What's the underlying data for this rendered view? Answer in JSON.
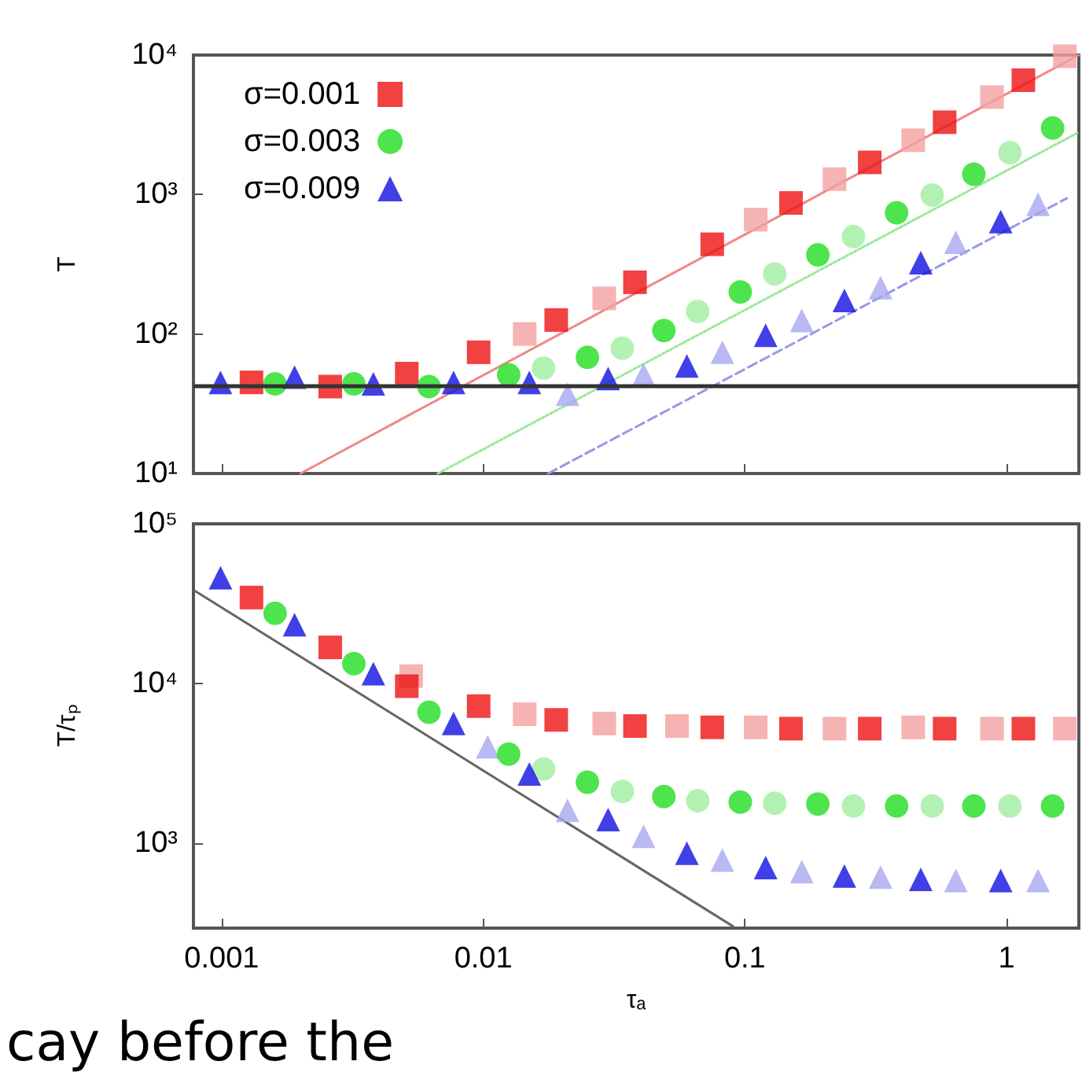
{
  "chart_data": [
    {
      "type": "scatter",
      "ylabel": "T",
      "log": "xy",
      "grid": false,
      "legend": "top left",
      "tick_labels": "y",
      "xlim": [
        0.00078,
        1.89
      ],
      "xticks": [
        0.001,
        0.01,
        0.1,
        1
      ],
      "ylim": [
        10,
        10000
      ],
      "yticks": [
        {
          "value": 10,
          "label": "10¹"
        },
        {
          "value": 100,
          "label": "10²"
        },
        {
          "value": 1000,
          "label": "10³"
        },
        {
          "value": 10000,
          "label": "10⁴"
        }
      ],
      "ref_lines": [
        {
          "axis": "y",
          "value": 43,
          "color": "#333333"
        }
      ],
      "series": [
        {
          "type": "line",
          "color": "#f08888",
          "marker": "none",
          "line_style": "solid",
          "x": [
            0.002,
            1.89
          ],
          "values": [
            10,
            10000
          ]
        },
        {
          "type": "line",
          "color": "#98e898",
          "marker": "none",
          "line_style": "dotted",
          "x": [
            0.0067,
            1.89
          ],
          "values": [
            10,
            2800
          ]
        },
        {
          "type": "line",
          "color": "#9898e8",
          "marker": "none",
          "line_style": "dashed",
          "x": [
            0.0177,
            1.7
          ],
          "values": [
            10,
            940
          ]
        },
        {
          "color": "#f4a0a0",
          "marker": "square",
          "x": [
            0.0144,
            0.029,
            0.11,
            0.22,
            0.44,
            0.88,
            1.67
          ],
          "values": [
            100,
            180,
            660,
            1290,
            2450,
            5000,
            9800
          ]
        },
        {
          "color": "#a0eea0",
          "marker": "circle",
          "x": [
            0.017,
            0.034,
            0.066,
            0.13,
            0.26,
            0.52,
            1.03
          ],
          "values": [
            57,
            79,
            145,
            270,
            500,
            990,
            2000
          ]
        },
        {
          "color": "#a8a8f0",
          "marker": "triangle",
          "x": [
            0.021,
            0.041,
            0.082,
            0.165,
            0.33,
            0.64,
            1.32
          ],
          "values": [
            37,
            51,
            74,
            125,
            215,
            455,
            850
          ]
        },
        {
          "name": "σ=0.001",
          "color": "#ee1111",
          "marker": "square",
          "x": [
            0.0013,
            0.0026,
            0.0051,
            0.0096,
            0.019,
            0.038,
            0.075,
            0.15,
            0.3,
            0.58,
            1.16
          ],
          "values": [
            45,
            42,
            52,
            74,
            126,
            235,
            440,
            870,
            1700,
            3300,
            6600
          ]
        },
        {
          "name": "σ=0.003",
          "color": "#22dd22",
          "marker": "circle",
          "x": [
            0.0016,
            0.0032,
            0.0062,
            0.0125,
            0.025,
            0.049,
            0.096,
            0.19,
            0.38,
            0.75,
            1.5
          ],
          "values": [
            44,
            44,
            42,
            51,
            68,
            106,
            200,
            370,
            740,
            1400,
            3000
          ]
        },
        {
          "name": "σ=0.009",
          "color": "#1010e0",
          "marker": "triangle",
          "x": [
            0.00099,
            0.0019,
            0.0038,
            0.0077,
            0.015,
            0.03,
            0.06,
            0.12,
            0.24,
            0.47,
            0.95
          ],
          "values": [
            45,
            49,
            44,
            45,
            45,
            48,
            59,
            98,
            174,
            325,
            640
          ]
        }
      ]
    },
    {
      "type": "scatter",
      "xlabel": "τₐ",
      "ylabel": "T/τₚ",
      "log": "xy",
      "grid": false,
      "xlim": [
        0.00078,
        1.89
      ],
      "xticks": [
        0.001,
        0.01,
        0.1,
        1
      ],
      "ylim": [
        292,
        100000
      ],
      "yticks": [
        {
          "value": 1000,
          "label": "10³"
        },
        {
          "value": 10000,
          "label": "10⁴"
        },
        {
          "value": 100000,
          "label": "10⁵"
        }
      ],
      "annotations": [
        "cay before the"
      ],
      "series": [
        {
          "type": "line",
          "color": "#666666",
          "marker": "none",
          "line_style": "solid",
          "x": [
            0.00079,
            0.09
          ],
          "values": [
            38000,
            300
          ]
        },
        {
          "color": "#f4a0a0",
          "marker": "square",
          "x": [
            0.0053,
            0.0144,
            0.029,
            0.055,
            0.11,
            0.22,
            0.44,
            0.88,
            1.67
          ],
          "values": [
            11100,
            6400,
            5600,
            5400,
            5300,
            5200,
            5300,
            5200,
            5200
          ]
        },
        {
          "color": "#a0eea0",
          "marker": "circle",
          "x": [
            0.017,
            0.034,
            0.066,
            0.13,
            0.26,
            0.52,
            1.03
          ],
          "values": [
            2900,
            2100,
            1840,
            1770,
            1700,
            1700,
            1700
          ]
        },
        {
          "color": "#a8a8f0",
          "marker": "triangle",
          "x": [
            0.0104,
            0.021,
            0.041,
            0.082,
            0.165,
            0.33,
            0.64,
            1.32
          ],
          "values": [
            4000,
            1600,
            1100,
            780,
            660,
            610,
            580,
            580
          ]
        },
        {
          "color": "#ee1111",
          "marker": "square",
          "x": [
            0.0013,
            0.0026,
            0.0051,
            0.0096,
            0.019,
            0.038,
            0.075,
            0.15,
            0.3,
            0.58,
            1.16
          ],
          "values": [
            34500,
            16800,
            9600,
            7200,
            5900,
            5400,
            5300,
            5200,
            5200,
            5200,
            5200
          ]
        },
        {
          "color": "#22dd22",
          "marker": "circle",
          "x": [
            0.0016,
            0.0032,
            0.0062,
            0.0125,
            0.025,
            0.049,
            0.096,
            0.19,
            0.38,
            0.75,
            1.5
          ],
          "values": [
            27500,
            13300,
            6600,
            3600,
            2400,
            1950,
            1800,
            1750,
            1700,
            1700,
            1700
          ]
        },
        {
          "color": "#1010e0",
          "marker": "triangle",
          "x": [
            0.00099,
            0.0019,
            0.0038,
            0.0077,
            0.015,
            0.03,
            0.06,
            0.12,
            0.24,
            0.47,
            0.95
          ],
          "values": [
            46000,
            23300,
            11500,
            5600,
            2700,
            1400,
            860,
            700,
            620,
            590,
            580
          ]
        }
      ]
    }
  ]
}
